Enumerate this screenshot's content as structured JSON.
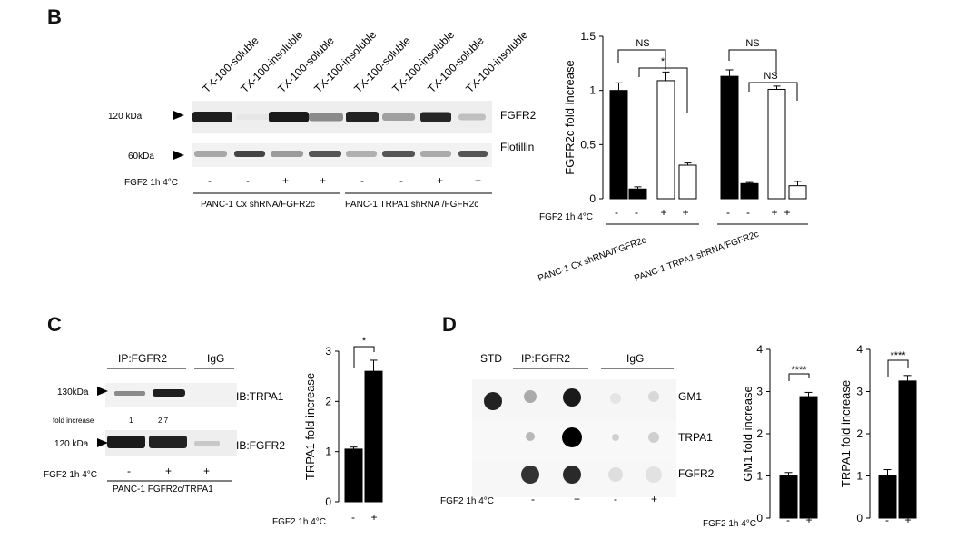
{
  "panel_b": {
    "letter": "B",
    "lane_headers": [
      "TX-100-soluble",
      "TX-100-insoluble",
      "TX-100-soluble",
      "TX-100-insoluble",
      "TX-100-soluble",
      "TX-100-insoluble",
      "TX-100-soluble",
      "TX-100-insoluble"
    ],
    "mw_120": "120 kDa",
    "mw_60": "60kDa",
    "blot_fgfr2": "FGFR2",
    "blot_flotillin": "Flotillin",
    "treatment_label": "FGF2 1h 4°C",
    "treatment_signs": [
      "-",
      "-",
      "+",
      "+",
      "-",
      "-",
      "+",
      "+"
    ],
    "group1": "PANC-1 Cx shRNA/FGFR2c",
    "group2": "PANC-1 TRPA1 shRNA /FGFR2c"
  },
  "chart_b": {
    "ylabel": "FGFR2c  fold increase",
    "yticks": [
      "0",
      "0.5",
      "1",
      "1.5"
    ],
    "treatment_label": "FGF2 1h 4°C",
    "signs": [
      "-",
      "-",
      "+",
      "+",
      "-",
      "-",
      "+",
      "+"
    ],
    "group1": "PANC-1 Cx shRNA/FGFR2c",
    "group2": "PANC-1 TRPA1 shRNA/FGFR2c",
    "sig": [
      "NS",
      "*",
      "NS",
      "NS"
    ]
  },
  "panel_c": {
    "letter": "C",
    "ip_label": "IP:FGFR2",
    "igg_label": "IgG",
    "mw_130": "130kDa",
    "mw_120": "120 kDa",
    "ib_trpa1": "IB:TRPA1",
    "ib_fgfr2": "IB:FGFR2",
    "fold_label": "fold increase",
    "fold_values": [
      "1",
      "2,7"
    ],
    "treatment_label": "FGF2 1h 4°C",
    "signs": [
      "-",
      "+",
      "+"
    ],
    "cell_line": "PANC-1 FGFR2c/TRPA1"
  },
  "chart_c": {
    "ylabel": "TRPA1  fold increase",
    "yticks": [
      "0",
      "1",
      "2",
      "3"
    ],
    "treatment_label": "FGF2 1h 4°C",
    "signs": [
      "-",
      "+"
    ],
    "sig": "*"
  },
  "panel_d": {
    "letter": "D",
    "std_label": "STD",
    "ip_label": "IP:FGFR2",
    "igg_label": "IgG",
    "rows": [
      "GM1",
      "TRPA1",
      "FGFR2"
    ],
    "treatment_label": "FGF2 1h 4°C",
    "signs": [
      "-",
      "+",
      "-",
      "+"
    ]
  },
  "chart_d1": {
    "ylabel": "GM1  fold increase",
    "yticks": [
      "0",
      "1",
      "2",
      "3",
      "4"
    ],
    "treatment_label": "FGF2 1h 4°C",
    "signs": [
      "-",
      "+"
    ],
    "sig": "****"
  },
  "chart_d2": {
    "ylabel": "TRPA1  fold increase",
    "yticks": [
      "0",
      "1",
      "2",
      "3",
      "4"
    ],
    "signs": [
      "-",
      "+"
    ],
    "sig": "****"
  },
  "chart_data": [
    {
      "type": "bar",
      "categories": [
        "Cx -",
        "Cx -",
        "Cx +",
        "Cx +",
        "TRPA1 -",
        "TRPA1 -",
        "TRPA1 +",
        "TRPA1 +"
      ],
      "values": [
        1.0,
        0.09,
        1.09,
        0.31,
        1.13,
        0.14,
        1.01,
        0.12
      ],
      "errors": [
        0.07,
        0.02,
        0.08,
        0.02,
        0.06,
        0.01,
        0.03,
        0.04
      ],
      "fills": [
        "#000000",
        "#000000",
        "#ffffff",
        "#ffffff",
        "#000000",
        "#000000",
        "#ffffff",
        "#ffffff"
      ],
      "ylabel": "FGFR2c  fold increase",
      "ylim": [
        0,
        1.5
      ]
    },
    {
      "type": "bar",
      "categories": [
        "-",
        "+"
      ],
      "values": [
        1.05,
        2.6
      ],
      "errors": [
        0.04,
        0.22
      ],
      "ylabel": "TRPA1  fold increase",
      "ylim": [
        0,
        3
      ]
    },
    {
      "type": "bar",
      "categories": [
        "-",
        "+"
      ],
      "values": [
        1.0,
        2.88
      ],
      "errors": [
        0.08,
        0.1
      ],
      "ylabel": "GM1  fold increase",
      "ylim": [
        0,
        4
      ]
    },
    {
      "type": "bar",
      "categories": [
        "-",
        "+"
      ],
      "values": [
        1.0,
        3.25
      ],
      "errors": [
        0.15,
        0.13
      ],
      "ylabel": "TRPA1  fold increase",
      "ylim": [
        0,
        4
      ]
    }
  ]
}
